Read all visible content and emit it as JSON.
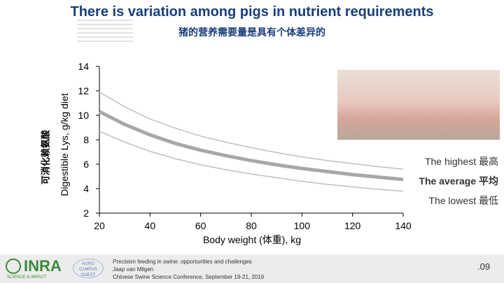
{
  "header": {
    "title": "There is variation among pigs in nutrient requirements",
    "subtitle": "猪的营养需要量是具有个体差异的"
  },
  "chart_data": {
    "type": "line",
    "xlabel": "Body weight (体重), kg",
    "ylabel": "Digestible Lys, g/kg diet",
    "ylabel_secondary": "可消化赖氨酸",
    "xlim": [
      20,
      140
    ],
    "ylim": [
      2,
      14
    ],
    "x_ticks": [
      "20",
      "40",
      "60",
      "80",
      "100",
      "120",
      "140"
    ],
    "y_ticks": [
      "2",
      "4",
      "6",
      "8",
      "10",
      "12",
      "14"
    ],
    "grid": false,
    "x": [
      20,
      30,
      40,
      50,
      60,
      70,
      80,
      90,
      100,
      110,
      120,
      130,
      140
    ],
    "series": [
      {
        "name": "The highest 最高",
        "values": [
          11.9,
          10.7,
          9.7,
          8.95,
          8.3,
          7.8,
          7.35,
          6.95,
          6.6,
          6.3,
          6.05,
          5.8,
          5.6
        ]
      },
      {
        "name": "The average 平均",
        "values": [
          10.3,
          9.25,
          8.4,
          7.7,
          7.15,
          6.7,
          6.3,
          5.95,
          5.65,
          5.4,
          5.15,
          4.95,
          4.75
        ]
      },
      {
        "name": "The lowest 最低",
        "values": [
          8.7,
          7.8,
          7.05,
          6.45,
          5.95,
          5.55,
          5.2,
          4.9,
          4.6,
          4.35,
          4.15,
          3.95,
          3.8
        ]
      }
    ],
    "colors": {
      "line": "#c0c0c0",
      "average_line": "#a8a8a8",
      "axis": "#000000"
    }
  },
  "photo": {
    "icon": "pigs-photo"
  },
  "footer": {
    "logo_word": "INRA",
    "logo_sub": "SCIENCE & IMPACT",
    "campus_line1": "AGRO",
    "campus_line2": "CAMPUS",
    "campus_line3": "OUEST",
    "lines": [
      "Precision feeding in swine: opportunities and challenges",
      "Jaap van Milgen",
      "Chinese Swine Science Conference, September 19-21, 2019"
    ],
    "page": ".09"
  }
}
